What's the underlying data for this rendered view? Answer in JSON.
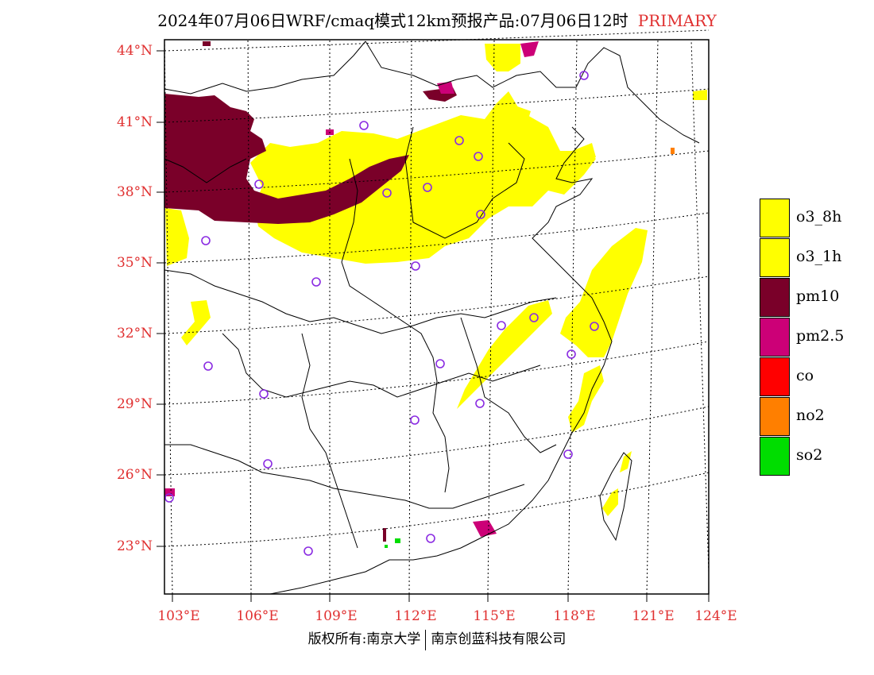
{
  "title": {
    "main": "2024年07月06日WRF/cmaq模式12km预报产品:07月06日12时",
    "tag": "PRIMARY"
  },
  "axes": {
    "lat_labels": [
      "44°N",
      "41°N",
      "38°N",
      "35°N",
      "32°N",
      "29°N",
      "26°N",
      "23°N"
    ],
    "lon_labels": [
      "103°E",
      "106°E",
      "109°E",
      "112°E",
      "115°E",
      "118°E",
      "121°E",
      "124°E"
    ]
  },
  "legend": [
    {
      "label": "o3_8h",
      "color": "#ffff00"
    },
    {
      "label": "o3_1h",
      "color": "#ffff00"
    },
    {
      "label": "pm10",
      "color": "#7a0029"
    },
    {
      "label": "pm2.5",
      "color": "#cc0077"
    },
    {
      "label": "co",
      "color": "#ff0000"
    },
    {
      "label": "no2",
      "color": "#ff7f00"
    },
    {
      "label": "so2",
      "color": "#00dd00"
    }
  ],
  "footer": {
    "left": "版权所有:南京大学",
    "right": "南京创蓝科技有限公司"
  }
}
